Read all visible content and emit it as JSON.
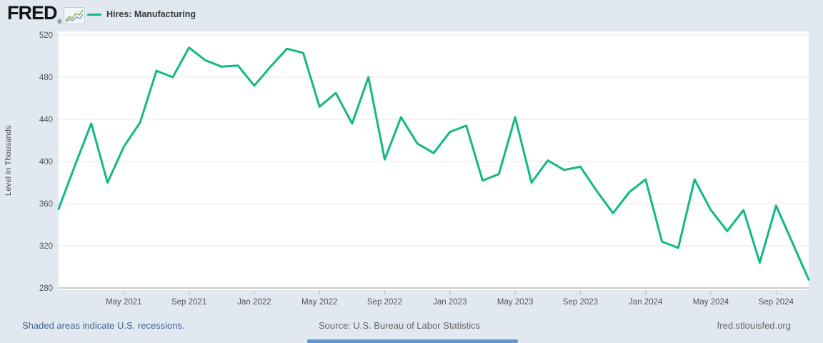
{
  "header": {
    "logo_text": "FRED",
    "logo_registered": "®",
    "legend_label": "Hires: Manufacturing"
  },
  "y_axis_title": "Level in Thousands",
  "footer": {
    "recession_note": "Shaded areas indicate U.S. recessions.",
    "source": "Source: U.S. Bureau of Labor Statistics",
    "site": "fred.stlouisfed.org"
  },
  "colors": {
    "background": "#e2e8f0",
    "plot_background": "#ffffff",
    "line": "#12b885",
    "gridline": "#e7e7e7",
    "axis_line": "#9a9a9a",
    "tick_mark": "#b6c2d2",
    "tick_text": "#555555",
    "footer_link": "#3f6491",
    "footer_text": "#666666",
    "bottom_bar": "#5f97d2",
    "logo_icon_line1": "#86b54c",
    "logo_icon_line2": "#8aa0b4"
  },
  "chart_data": {
    "type": "line",
    "series_name": "Hires: Manufacturing",
    "title": "",
    "xlabel": "",
    "ylabel": "Level in Thousands",
    "units": "Thousands",
    "ylim": [
      280,
      520
    ],
    "yticks": [
      280,
      320,
      360,
      400,
      440,
      480,
      520
    ],
    "grid": true,
    "legend_position": "top-left",
    "x": [
      "2021-01",
      "2021-02",
      "2021-03",
      "2021-04",
      "2021-05",
      "2021-06",
      "2021-07",
      "2021-08",
      "2021-09",
      "2021-10",
      "2021-11",
      "2021-12",
      "2022-01",
      "2022-02",
      "2022-03",
      "2022-04",
      "2022-05",
      "2022-06",
      "2022-07",
      "2022-08",
      "2022-09",
      "2022-10",
      "2022-11",
      "2022-12",
      "2023-01",
      "2023-02",
      "2023-03",
      "2023-04",
      "2023-05",
      "2023-06",
      "2023-07",
      "2023-08",
      "2023-09",
      "2023-10",
      "2023-11",
      "2023-12",
      "2024-01",
      "2024-02",
      "2024-03",
      "2024-04",
      "2024-05",
      "2024-06",
      "2024-07",
      "2024-08",
      "2024-09",
      "2024-10",
      "2024-11"
    ],
    "values": [
      355,
      396,
      436,
      380,
      414,
      437,
      486,
      480,
      508,
      496,
      490,
      491,
      472,
      490,
      507,
      503,
      452,
      465,
      436,
      480,
      402,
      442,
      417,
      408,
      428,
      434,
      382,
      388,
      442,
      380,
      401,
      392,
      395,
      372,
      351,
      371,
      383,
      324,
      318,
      383,
      354,
      334,
      354,
      304,
      358,
      323,
      288
    ],
    "xtick_indices": [
      4,
      8,
      12,
      16,
      20,
      24,
      28,
      32,
      36,
      40,
      44
    ],
    "xtick_labels": [
      "May 2021",
      "Sep 2021",
      "Jan 2022",
      "May 2022",
      "Sep 2022",
      "Jan 2023",
      "May 2023",
      "Sep 2023",
      "Jan 2024",
      "May 2024",
      "Sep 2024"
    ]
  }
}
